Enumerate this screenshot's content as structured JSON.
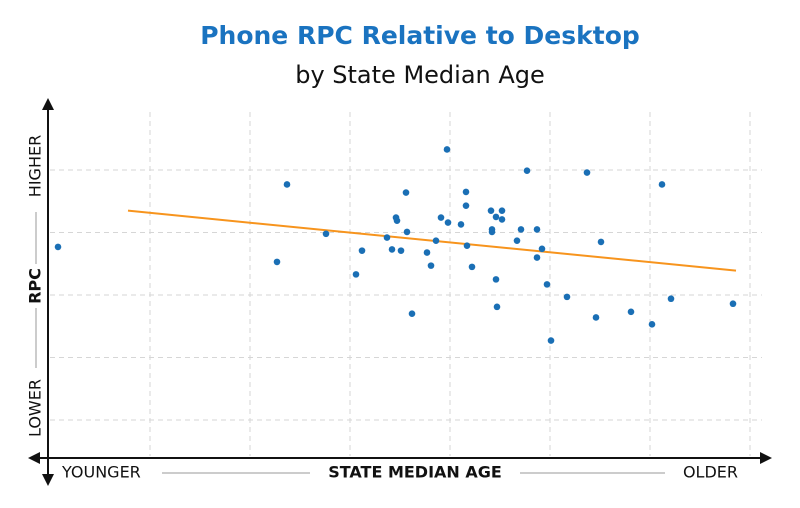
{
  "chart_data": {
    "type": "scatter",
    "title": "Phone RPC Relative to Desktop",
    "subtitle": "by State Median Age",
    "x_label": "STATE MEDIAN AGE",
    "x_low_label": "YOUNGER",
    "x_high_label": "OLDER",
    "y_label": "RPC",
    "y_low_label": "LOWER",
    "y_high_label": "HIGHER",
    "xlim": [
      0,
      7.2
    ],
    "ylim": [
      0.4,
      6.1
    ],
    "grid": true,
    "color": "#1a6fb5",
    "x": [
      0.08,
      2.37,
      2.27,
      2.76,
      3.06,
      3.12,
      3.37,
      3.42,
      3.46,
      3.47,
      3.51,
      3.56,
      3.57,
      3.62,
      3.77,
      3.81,
      3.86,
      3.91,
      3.97,
      3.98,
      4.11,
      4.16,
      4.16,
      4.17,
      4.22,
      4.41,
      4.42,
      4.42,
      4.46,
      4.46,
      4.47,
      4.52,
      4.52,
      4.67,
      4.71,
      4.77,
      4.87,
      4.87,
      4.92,
      4.97,
      5.01,
      5.17,
      5.37,
      5.46,
      5.51,
      5.81,
      6.02,
      6.12,
      6.21,
      6.83
    ],
    "values": [
      3.78,
      4.78,
      3.54,
      3.99,
      3.34,
      3.72,
      3.93,
      3.74,
      4.25,
      4.2,
      3.72,
      4.65,
      4.02,
      2.71,
      3.69,
      3.48,
      3.88,
      4.25,
      5.34,
      4.17,
      4.14,
      4.66,
      4.44,
      3.8,
      3.46,
      4.36,
      4.06,
      4.02,
      4.26,
      3.26,
      2.82,
      4.36,
      4.22,
      3.88,
      4.06,
      5.0,
      4.06,
      3.61,
      3.75,
      3.18,
      2.28,
      2.98,
      4.97,
      2.65,
      3.86,
      2.74,
      2.54,
      4.78,
      2.95,
      2.87
    ],
    "trend": {
      "x": [
        0.78,
        6.86
      ],
      "values": [
        4.36,
        3.4
      ],
      "color": "#f7941d"
    }
  }
}
